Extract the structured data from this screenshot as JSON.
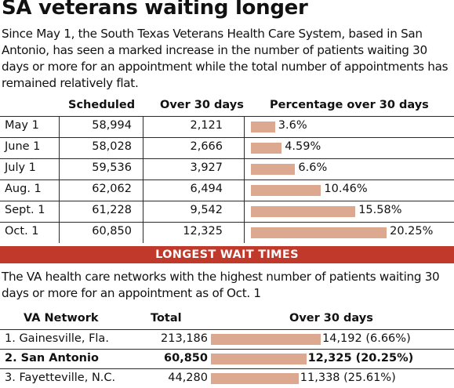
{
  "title": "SA veterans waiting longer",
  "intro": "Since May 1, the South Texas Veterans Health Care System, based in San Antonio, has seen a marked increase in the number of patients waiting 30 days or more for an appointment while the total number of appointments has remained relatively flat.",
  "banner": "LONGEST WAIT TIMES",
  "intro2": "The VA health care networks with the highest number of patients waiting 30 days or more for an appointment as of Oct. 1",
  "colors": {
    "bar": "#dca88f",
    "banner": "#c0392b",
    "rule": "#2a2a2a"
  },
  "chart_data": [
    {
      "type": "table",
      "columns": [
        "",
        "Scheduled",
        "Over 30 days",
        "Percentage over 30 days"
      ],
      "rows": [
        {
          "date": "May 1",
          "scheduled": "58,994",
          "over30": "2,121",
          "pct": 3.6,
          "pct_label": "3.6%"
        },
        {
          "date": "June 1",
          "scheduled": "58,028",
          "over30": "2,666",
          "pct": 4.59,
          "pct_label": "4.59%"
        },
        {
          "date": "July 1",
          "scheduled": "59,536",
          "over30": "3,927",
          "pct": 6.6,
          "pct_label": "6.6%"
        },
        {
          "date": "Aug. 1",
          "scheduled": "62,062",
          "over30": "6,494",
          "pct": 10.46,
          "pct_label": "10.46%"
        },
        {
          "date": "Sept. 1",
          "scheduled": "61,228",
          "over30": "9,542",
          "pct": 15.58,
          "pct_label": "15.58%"
        },
        {
          "date": "Oct. 1",
          "scheduled": "60,850",
          "over30": "12,325",
          "pct": 20.25,
          "pct_label": "20.25%"
        }
      ]
    },
    {
      "type": "table",
      "columns": [
        "VA Network",
        "Total",
        "Over 30 days"
      ],
      "rows": [
        {
          "network": "1. Gainesville, Fla.",
          "total": "213,186",
          "over30": 14192,
          "label": "14,192 (6.66%)",
          "bold": false
        },
        {
          "network": "2. San Antonio",
          "total": "60,850",
          "over30": 12325,
          "label": "12,325 (20.25%)",
          "bold": true
        },
        {
          "network": "3. Fayetteville, N.C.",
          "total": "44,280",
          "over30": 11338,
          "label": "11,338 (25.61%)",
          "bold": false
        }
      ]
    }
  ]
}
